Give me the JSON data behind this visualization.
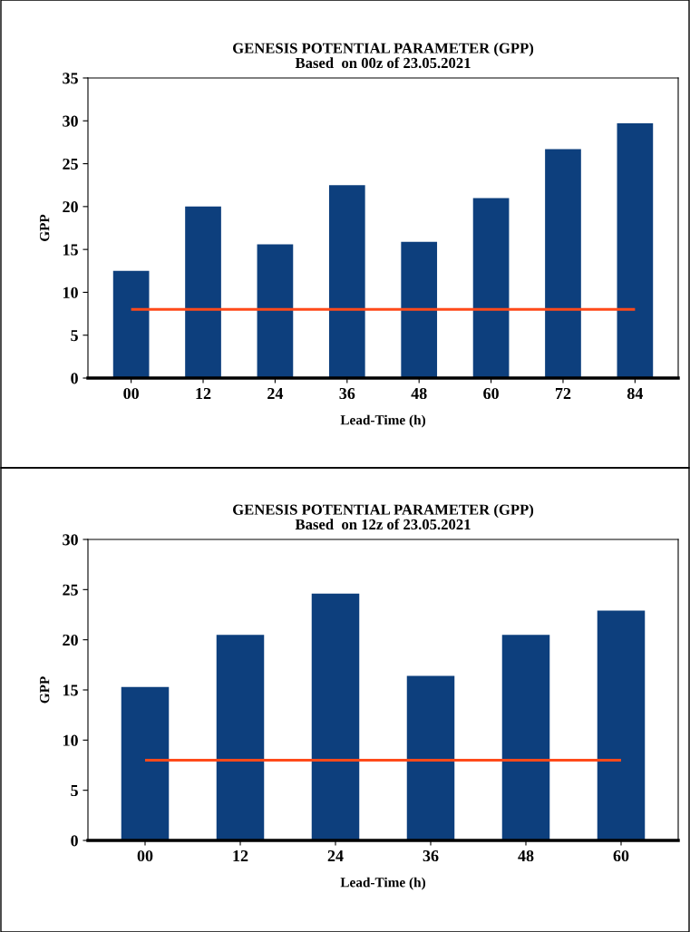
{
  "chart_data": [
    {
      "type": "bar",
      "title": "GENESIS POTENTIAL PARAMETER (GPP)",
      "subtitle": "Based  on 00z of 23.05.2021",
      "xlabel": "Lead-Time (h)",
      "ylabel": "GPP",
      "categories": [
        "00",
        "12",
        "24",
        "36",
        "48",
        "60",
        "72",
        "84"
      ],
      "series": [
        {
          "color": "#0d3f7d",
          "values": [
            12.5,
            20.0,
            15.6,
            22.5,
            15.9,
            21.0,
            26.7,
            29.7
          ]
        }
      ],
      "ylim": [
        0,
        35
      ],
      "yticks": [
        0,
        5,
        10,
        15,
        20,
        25,
        30,
        35
      ],
      "grid": false,
      "legend": false,
      "ref_lines": [
        {
          "axis": "y",
          "value": 8,
          "color": "#ff4a1a",
          "line_style": "solid"
        }
      ]
    },
    {
      "type": "bar",
      "title": "GENESIS POTENTIAL PARAMETER (GPP)",
      "subtitle": "Based  on 12z of 23.05.2021",
      "xlabel": "Lead-Time (h)",
      "ylabel": "GPP",
      "categories": [
        "00",
        "12",
        "24",
        "36",
        "48",
        "60"
      ],
      "series": [
        {
          "color": "#0d3f7d",
          "values": [
            15.3,
            20.5,
            24.6,
            16.4,
            20.5,
            22.9
          ]
        }
      ],
      "ylim": [
        0,
        30
      ],
      "yticks": [
        0,
        5,
        10,
        15,
        20,
        25,
        30
      ],
      "grid": false,
      "legend": false,
      "ref_lines": [
        {
          "axis": "y",
          "value": 8,
          "color": "#ff4a1a",
          "line_style": "solid"
        }
      ]
    }
  ]
}
